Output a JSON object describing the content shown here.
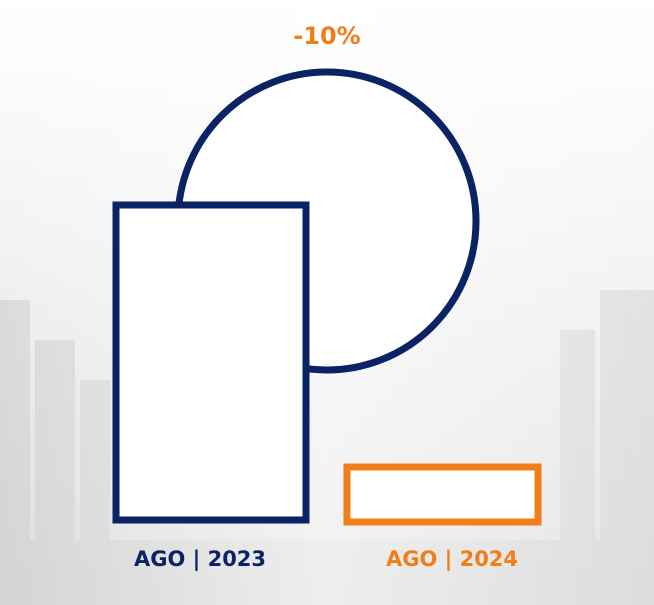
{
  "change_label": "-10%",
  "left_label": "AGO | 2023",
  "right_label": "AGO | 2024"
}
